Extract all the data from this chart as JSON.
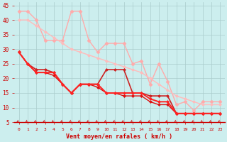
{
  "xlabel": "Vent moyen/en rafales ( km/h )",
  "bg_color": "#cceeee",
  "grid_color": "#aacccc",
  "xlim": [
    -0.5,
    23.5
  ],
  "ylim": [
    5,
    46
  ],
  "yticks": [
    5,
    10,
    15,
    20,
    25,
    30,
    35,
    40,
    45
  ],
  "xticks": [
    0,
    1,
    2,
    3,
    4,
    5,
    6,
    7,
    8,
    9,
    10,
    11,
    12,
    13,
    14,
    15,
    16,
    17,
    18,
    19,
    20,
    21,
    22,
    23
  ],
  "series": [
    {
      "x": [
        0,
        1,
        2,
        3,
        4,
        5,
        6,
        7,
        8,
        9,
        10,
        11,
        12,
        13,
        14,
        15,
        16,
        17,
        18,
        19,
        20,
        21,
        22,
        23
      ],
      "y": [
        43,
        43,
        40,
        33,
        33,
        33,
        43,
        43,
        33,
        29,
        32,
        32,
        32,
        25,
        26,
        18,
        25,
        19,
        11,
        12,
        9,
        12,
        12,
        12
      ],
      "color": "#ffaaaa",
      "lw": 1.0,
      "marker": "D",
      "ms": 2.5,
      "zorder": 2
    },
    {
      "x": [
        0,
        1,
        2,
        3,
        4,
        5,
        6,
        7,
        8,
        9,
        10,
        11,
        12,
        13,
        14,
        15,
        16,
        17,
        18,
        19,
        20,
        21,
        22,
        23
      ],
      "y": [
        40,
        40,
        38,
        36,
        34,
        32,
        30,
        29,
        28,
        27,
        26,
        25,
        24,
        23,
        22,
        20,
        18,
        16,
        14,
        13,
        12,
        11,
        11,
        11
      ],
      "color": "#ffbbbb",
      "lw": 1.0,
      "marker": "D",
      "ms": 2.0,
      "zorder": 2
    },
    {
      "x": [
        0,
        1,
        2,
        3,
        4,
        5,
        6,
        7,
        8,
        9,
        10,
        11,
        12,
        13,
        14,
        15,
        16,
        17,
        18,
        19,
        20,
        21,
        22,
        23
      ],
      "y": [
        29,
        25,
        23,
        23,
        22,
        18,
        15,
        18,
        18,
        18,
        23,
        23,
        23,
        15,
        15,
        14,
        14,
        14,
        8,
        8,
        8,
        8,
        8,
        8
      ],
      "color": "#cc2222",
      "lw": 1.2,
      "marker": "D",
      "ms": 2.0,
      "zorder": 3
    },
    {
      "x": [
        0,
        1,
        2,
        3,
        4,
        5,
        6,
        7,
        8,
        9,
        10,
        11,
        12,
        13,
        14,
        15,
        16,
        17,
        18,
        19,
        20,
        21,
        22,
        23
      ],
      "y": [
        29,
        25,
        22,
        22,
        22,
        18,
        15,
        18,
        18,
        18,
        15,
        15,
        15,
        15,
        15,
        13,
        12,
        12,
        8,
        8,
        8,
        8,
        8,
        8
      ],
      "color": "#ff2222",
      "lw": 1.4,
      "marker": "D",
      "ms": 2.0,
      "zorder": 4
    },
    {
      "x": [
        0,
        1,
        2,
        3,
        4,
        5,
        6,
        7,
        8,
        9,
        10,
        11,
        12,
        13,
        14,
        15,
        16,
        17,
        18,
        19,
        20,
        21,
        22,
        23
      ],
      "y": [
        29,
        25,
        22,
        22,
        21,
        18,
        15,
        18,
        18,
        17,
        15,
        15,
        14,
        14,
        14,
        12,
        11,
        11,
        8,
        8,
        8,
        8,
        8,
        8
      ],
      "color": "#dd1111",
      "lw": 1.0,
      "marker": "D",
      "ms": 2.0,
      "zorder": 3
    }
  ],
  "arrow_color": "#cc2222",
  "axis_color": "#cc0000",
  "tick_color": "#cc0000",
  "xlabel_color": "#cc0000",
  "xlabel_fontsize": 6,
  "ytick_fontsize": 5.5,
  "xtick_fontsize": 4.5
}
